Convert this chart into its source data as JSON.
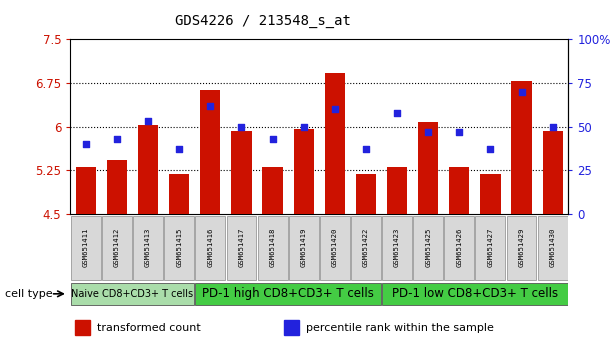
{
  "title": "GDS4226 / 213548_s_at",
  "samples": [
    "GSM651411",
    "GSM651412",
    "GSM651413",
    "GSM651415",
    "GSM651416",
    "GSM651417",
    "GSM651418",
    "GSM651419",
    "GSM651420",
    "GSM651422",
    "GSM651423",
    "GSM651425",
    "GSM651426",
    "GSM651427",
    "GSM651429",
    "GSM651430"
  ],
  "bar_values": [
    5.31,
    5.42,
    6.02,
    5.19,
    6.63,
    5.92,
    5.31,
    5.96,
    6.91,
    5.19,
    5.3,
    6.07,
    5.3,
    5.19,
    6.78,
    5.92
  ],
  "dot_values": [
    40,
    43,
    53,
    37,
    62,
    50,
    43,
    50,
    60,
    37,
    58,
    47,
    47,
    37,
    70,
    50
  ],
  "bar_color": "#cc1100",
  "dot_color": "#2222dd",
  "ylim": [
    4.5,
    7.5
  ],
  "yticks": [
    4.5,
    5.25,
    6.0,
    6.75,
    7.5
  ],
  "ytick_labels": [
    "4.5",
    "5.25",
    "6",
    "6.75",
    "7.5"
  ],
  "y2lim": [
    0,
    100
  ],
  "y2ticks": [
    0,
    25,
    50,
    75,
    100
  ],
  "y2ticklabels": [
    "0",
    "25",
    "50",
    "75",
    "100%"
  ],
  "groups": [
    {
      "label": "Naive CD8+CD3+ T cells",
      "start": 0,
      "end": 4,
      "color": "#aaddaa"
    },
    {
      "label": "PD-1 high CD8+CD3+ T cells",
      "start": 4,
      "end": 10,
      "color": "#44cc44"
    },
    {
      "label": "PD-1 low CD8+CD3+ T cells",
      "start": 10,
      "end": 16,
      "color": "#44cc44"
    }
  ],
  "cell_type_label": "cell type",
  "legend_items": [
    {
      "label": "transformed count",
      "color": "#cc1100"
    },
    {
      "label": "percentile rank within the sample",
      "color": "#2222dd"
    }
  ],
  "bar_bottom": 4.5,
  "background_color": "#ffffff",
  "sample_box_color": "#d8d8d8",
  "grid_linestyle": ":"
}
